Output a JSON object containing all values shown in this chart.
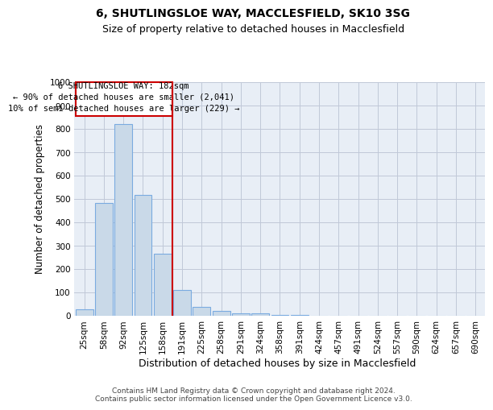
{
  "title1": "6, SHUTLINGSLOE WAY, MACCLESFIELD, SK10 3SG",
  "title2": "Size of property relative to detached houses in Macclesfield",
  "xlabel": "Distribution of detached houses by size in Macclesfield",
  "ylabel": "Number of detached properties",
  "categories": [
    "25sqm",
    "58sqm",
    "92sqm",
    "125sqm",
    "158sqm",
    "191sqm",
    "225sqm",
    "258sqm",
    "291sqm",
    "324sqm",
    "358sqm",
    "391sqm",
    "424sqm",
    "457sqm",
    "491sqm",
    "524sqm",
    "557sqm",
    "590sqm",
    "624sqm",
    "657sqm",
    "690sqm"
  ],
  "values": [
    25,
    480,
    820,
    515,
    265,
    110,
    35,
    20,
    10,
    8,
    3,
    2,
    0,
    0,
    0,
    0,
    0,
    0,
    0,
    0,
    0
  ],
  "bar_color": "#c9d9e8",
  "bar_edge_color": "#7aabe0",
  "grid_color": "#c0c8d8",
  "background_color": "#e8eef6",
  "vline_color": "#cc0000",
  "annotation_text": "6 SHUTLINGSLOE WAY: 182sqm\n← 90% of detached houses are smaller (2,041)\n10% of semi-detached houses are larger (229) →",
  "annotation_box_color": "#cc0000",
  "ylim": [
    0,
    1000
  ],
  "yticks": [
    0,
    100,
    200,
    300,
    400,
    500,
    600,
    700,
    800,
    900,
    1000
  ],
  "footer_text": "Contains HM Land Registry data © Crown copyright and database right 2024.\nContains public sector information licensed under the Open Government Licence v3.0.",
  "title1_fontsize": 10,
  "title2_fontsize": 9,
  "xlabel_fontsize": 9,
  "ylabel_fontsize": 8.5,
  "tick_fontsize": 7.5,
  "annotation_fontsize": 7.5,
  "footer_fontsize": 6.5
}
